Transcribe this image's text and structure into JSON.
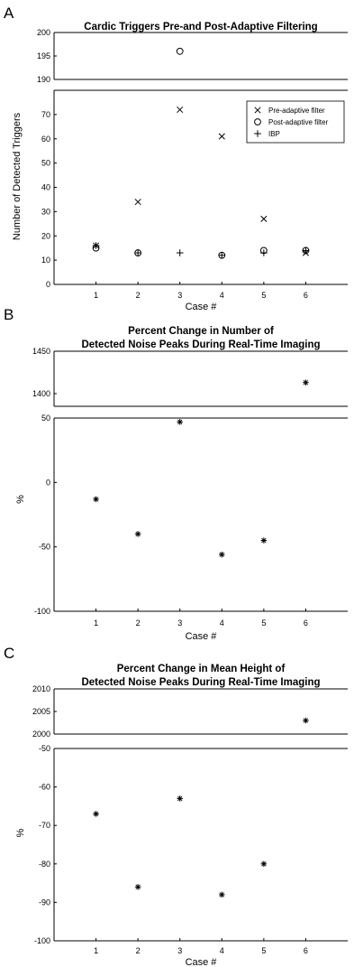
{
  "chart_data": [
    {
      "type": "scatter",
      "panel_letter": "A",
      "title": "Cardic Triggers Pre-and Post-Adaptive Filtering",
      "xlabel": "Case #",
      "ylabel": "Number of Detected Triggers",
      "xlim": [
        0,
        7
      ],
      "xticks": [
        1,
        2,
        3,
        4,
        5,
        6
      ],
      "broken_axis": true,
      "upper_ylim": [
        190,
        200
      ],
      "upper_yticks": [
        190,
        195,
        200
      ],
      "lower_ylim": [
        0,
        80
      ],
      "lower_yticks": [
        0,
        10,
        20,
        30,
        40,
        50,
        60,
        70
      ],
      "grid": false,
      "legend_position": "top-right",
      "series": [
        {
          "name": "Pre-adaptive filter",
          "marker": "x",
          "x": [
            1,
            2,
            3,
            4,
            5,
            6
          ],
          "y": [
            16,
            34,
            72,
            61,
            27,
            13
          ]
        },
        {
          "name": "Post-adaptive filter",
          "marker": "o",
          "x": [
            1,
            2,
            3,
            4,
            5,
            6
          ],
          "y": [
            15,
            13,
            196,
            12,
            14,
            14
          ]
        },
        {
          "name": "IBP",
          "marker": "+",
          "x": [
            1,
            2,
            3,
            4,
            5,
            6
          ],
          "y": [
            16,
            13,
            13,
            12,
            13,
            14
          ]
        }
      ]
    },
    {
      "type": "scatter",
      "panel_letter": "B",
      "title": "Percent Change in Number of",
      "title_line2": "Detected Noise Peaks During Real-Time Imaging",
      "xlabel": "Case #",
      "ylabel": "%",
      "xlim": [
        0,
        7
      ],
      "xticks": [
        1,
        2,
        3,
        4,
        5,
        6
      ],
      "broken_axis": true,
      "upper_ylim": [
        1385,
        1450
      ],
      "upper_yticks": [
        1400,
        1450
      ],
      "lower_ylim": [
        -100,
        50
      ],
      "lower_yticks": [
        -100,
        -50,
        0,
        50
      ],
      "grid": false,
      "series": [
        {
          "marker": "*",
          "x": [
            1,
            2,
            3,
            4,
            5,
            6
          ],
          "y": [
            -13,
            -40,
            47,
            -56,
            -45,
            1413
          ]
        }
      ]
    },
    {
      "type": "scatter",
      "panel_letter": "C",
      "title": "Percent Change in Mean Height of",
      "title_line2": "Detected Noise Peaks During Real-Time Imaging",
      "xlabel": "Case #",
      "ylabel": "%",
      "xlim": [
        0,
        7
      ],
      "xticks": [
        1,
        2,
        3,
        4,
        5,
        6
      ],
      "broken_axis": true,
      "upper_ylim": [
        2000,
        2010
      ],
      "upper_yticks": [
        2000,
        2005,
        2010
      ],
      "lower_ylim": [
        -100,
        -50
      ],
      "lower_yticks": [
        -100,
        -90,
        -80,
        -70,
        -60,
        -50
      ],
      "grid": false,
      "series": [
        {
          "marker": "*",
          "x": [
            1,
            2,
            3,
            4,
            5,
            6
          ],
          "y": [
            -67,
            -86,
            -63,
            -88,
            -80,
            2003
          ]
        }
      ]
    }
  ]
}
